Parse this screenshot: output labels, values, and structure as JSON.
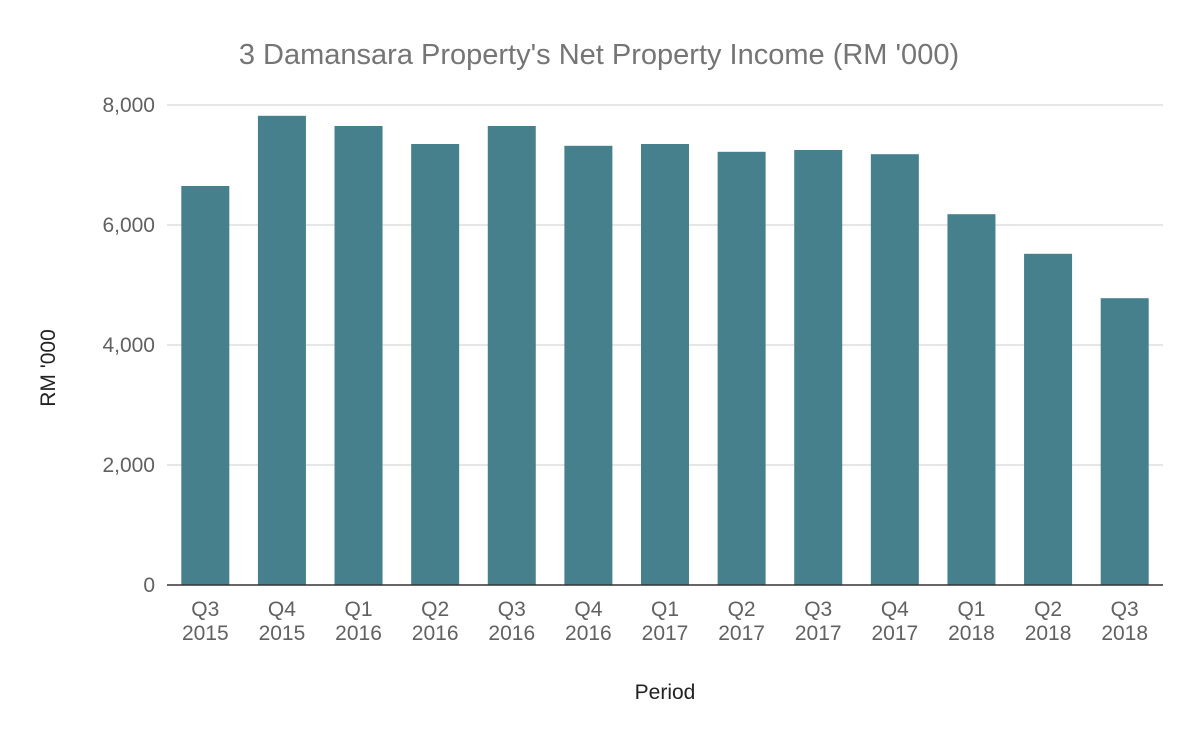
{
  "chart_data": {
    "type": "bar",
    "title": "3 Damansara Property's Net Property Income (RM '000)",
    "xlabel": "Period",
    "ylabel": "RM '000",
    "ylim": [
      0,
      8000
    ],
    "yticks": [
      0,
      2000,
      4000,
      6000,
      8000
    ],
    "ytick_labels": [
      "0",
      "2,000",
      "4,000",
      "6,000",
      "8,000"
    ],
    "grid": true,
    "legend": "none",
    "bar_color": "#45808c",
    "categories": [
      {
        "quarter": "Q3",
        "year": "2015"
      },
      {
        "quarter": "Q4",
        "year": "2015"
      },
      {
        "quarter": "Q1",
        "year": "2016"
      },
      {
        "quarter": "Q2",
        "year": "2016"
      },
      {
        "quarter": "Q3",
        "year": "2016"
      },
      {
        "quarter": "Q4",
        "year": "2016"
      },
      {
        "quarter": "Q1",
        "year": "2017"
      },
      {
        "quarter": "Q2",
        "year": "2017"
      },
      {
        "quarter": "Q3",
        "year": "2017"
      },
      {
        "quarter": "Q4",
        "year": "2017"
      },
      {
        "quarter": "Q1",
        "year": "2018"
      },
      {
        "quarter": "Q2",
        "year": "2018"
      },
      {
        "quarter": "Q3",
        "year": "2018"
      }
    ],
    "values": [
      6650,
      7820,
      7650,
      7350,
      7650,
      7320,
      7350,
      7220,
      7250,
      7180,
      6180,
      5520,
      4780
    ]
  }
}
